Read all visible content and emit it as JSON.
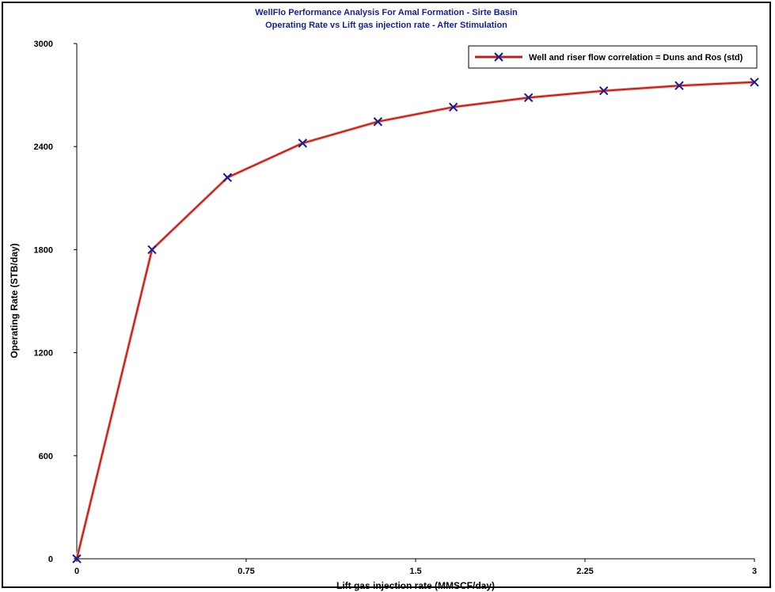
{
  "chart_data": {
    "type": "line",
    "title": "WellFlo Performance Analysis For Amal Formation - Sirte Basin",
    "subtitle": "Operating Rate vs Lift gas injection rate - After Stimulation",
    "xlabel": "Lift gas injection rate (MMSCF/day)",
    "ylabel": "Operating Rate (STB/day)",
    "xlim": [
      0,
      3
    ],
    "ylim": [
      0,
      3000
    ],
    "xticks": [
      0,
      0.75,
      1.5,
      2.25,
      3
    ],
    "xtick_labels": [
      "0",
      "0.75",
      "1.5",
      "2.25",
      "3"
    ],
    "yticks": [
      0,
      600,
      1200,
      1800,
      2400,
      3000
    ],
    "ytick_labels": [
      "0",
      "600",
      "1200",
      "1800",
      "2400",
      "3000"
    ],
    "grid": false,
    "legend_position": "top-right",
    "series": [
      {
        "name": "Well and riser flow correlation = Duns and Ros (std)",
        "color": "#b22222",
        "marker_color": "#1a1a8c",
        "marker": "x",
        "x": [
          0,
          0.333,
          0.667,
          1.0,
          1.333,
          1.667,
          2.0,
          2.333,
          2.667,
          3.0
        ],
        "y": [
          0,
          1800,
          2220,
          2420,
          2545,
          2630,
          2685,
          2725,
          2755,
          2775
        ]
      }
    ]
  }
}
